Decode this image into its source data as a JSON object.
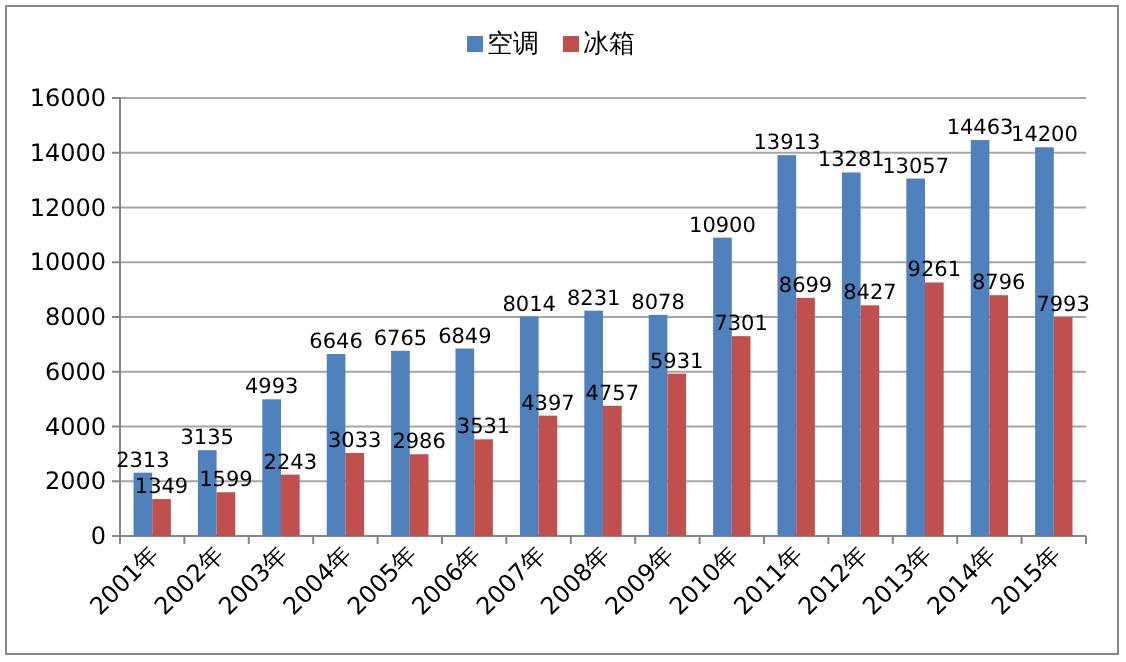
{
  "chart_data": {
    "type": "bar",
    "categories": [
      "2001年",
      "2002年",
      "2003年",
      "2004年",
      "2005年",
      "2006年",
      "2007年",
      "2008年",
      "2009年",
      "2010年",
      "2011年",
      "2012年",
      "2013年",
      "2014年",
      "2015年"
    ],
    "series": [
      {
        "name": "空调",
        "color": "#4f81bd",
        "values": [
          2313,
          3135,
          4993,
          6646,
          6765,
          6849,
          8014,
          8231,
          8078,
          10900,
          13913,
          13281,
          13057,
          14463,
          14200
        ]
      },
      {
        "name": "冰箱",
        "color": "#c0504d",
        "values": [
          1349,
          1599,
          2243,
          3033,
          2986,
          3531,
          4397,
          4757,
          5931,
          7301,
          8699,
          8427,
          9261,
          8796,
          7993
        ]
      }
    ],
    "ylim": [
      0,
      16000
    ],
    "yticks": [
      0,
      2000,
      4000,
      6000,
      8000,
      10000,
      12000,
      14000,
      16000
    ],
    "grid": "y",
    "legend": "top",
    "data_labels": true
  }
}
